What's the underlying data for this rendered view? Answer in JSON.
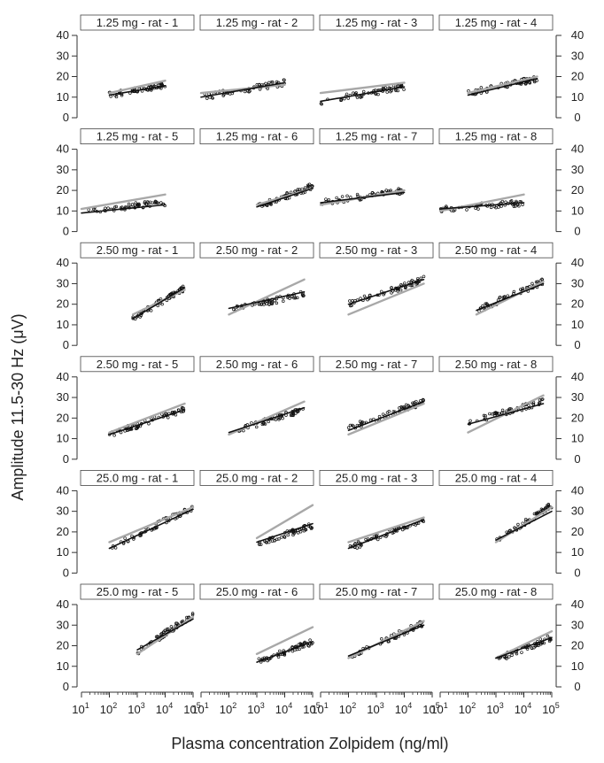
{
  "chart_data": {
    "type": "scatter",
    "xlabel": "Plasma concentration Zolpidem (ng/ml)",
    "ylabel": "Amplitude 11.5-30 Hz (μV)",
    "x_scale": "log",
    "xlim": [
      10,
      100000
    ],
    "ylim": [
      0,
      40
    ],
    "y_ticks": [
      "0",
      "10",
      "20",
      "30",
      "40"
    ],
    "x_tick_bases": [
      "10",
      "10",
      "10",
      "10",
      "10"
    ],
    "x_tick_exponents": [
      "1",
      "2",
      "3",
      "4",
      "5"
    ],
    "colors": {
      "observed": "#111111",
      "fit_black": "#111111",
      "fit_gray": "#a8a8a8"
    },
    "panels": [
      {
        "label": "1.25 mg - rat - 1",
        "obs_x": [
          100,
          10000
        ],
        "obs_y": [
          11,
          16
        ],
        "black_y": [
          11,
          15.5
        ],
        "gray_y": [
          12,
          18
        ]
      },
      {
        "label": "1.25 mg - rat - 2",
        "obs_x": [
          10,
          10000
        ],
        "obs_y": [
          10,
          17
        ],
        "black_y": [
          10,
          17
        ],
        "gray_y": [
          12,
          16
        ]
      },
      {
        "label": "1.25 mg - rat - 3",
        "obs_x": [
          10,
          10000
        ],
        "obs_y": [
          8,
          15
        ],
        "black_y": [
          8,
          15
        ],
        "gray_y": [
          12,
          17
        ]
      },
      {
        "label": "1.25 mg - rat - 4",
        "obs_x": [
          100,
          30000
        ],
        "obs_y": [
          12,
          19
        ],
        "black_y": [
          11,
          19
        ],
        "gray_y": [
          12,
          20
        ]
      },
      {
        "label": "1.25 mg - rat - 5",
        "obs_x": [
          10,
          10000
        ],
        "obs_y": [
          10,
          14
        ],
        "black_y": [
          9,
          13
        ],
        "gray_y": [
          11,
          18
        ]
      },
      {
        "label": "1.25 mg - rat - 6",
        "obs_x": [
          1000,
          100000
        ],
        "obs_y": [
          12,
          22
        ],
        "black_y": [
          12,
          21
        ],
        "gray_y": [
          13,
          21
        ]
      },
      {
        "label": "1.25 mg - rat - 7",
        "obs_x": [
          10,
          10000
        ],
        "obs_y": [
          14,
          20
        ],
        "black_y": [
          14,
          19
        ],
        "gray_y": [
          13,
          20
        ]
      },
      {
        "label": "1.25 mg - rat - 8",
        "obs_x": [
          10,
          10000
        ],
        "obs_y": [
          11,
          14
        ],
        "black_y": [
          11,
          14
        ],
        "gray_y": [
          10,
          18
        ]
      },
      {
        "label": "2.50 mg - rat - 1",
        "obs_x": [
          700,
          50000
        ],
        "obs_y": [
          13,
          28
        ],
        "black_y": [
          13,
          28
        ],
        "gray_y": [
          15,
          27
        ]
      },
      {
        "label": "2.50 mg - rat - 2",
        "obs_x": [
          100,
          50000
        ],
        "obs_y": [
          17,
          25
        ],
        "black_y": [
          18,
          26
        ],
        "gray_y": [
          15,
          32
        ]
      },
      {
        "label": "2.50 mg - rat - 3",
        "obs_x": [
          100,
          50000
        ],
        "obs_y": [
          20,
          32
        ],
        "black_y": [
          20,
          32
        ],
        "gray_y": [
          15,
          30
        ]
      },
      {
        "label": "2.50 mg - rat - 4",
        "obs_x": [
          200,
          50000
        ],
        "obs_y": [
          17,
          31
        ],
        "black_y": [
          17,
          30
        ],
        "gray_y": [
          15,
          31
        ]
      },
      {
        "label": "2.50 mg - rat - 5",
        "obs_x": [
          100,
          50000
        ],
        "obs_y": [
          12,
          24
        ],
        "black_y": [
          12,
          24
        ],
        "gray_y": [
          13,
          27
        ]
      },
      {
        "label": "2.50 mg - rat - 6",
        "obs_x": [
          100,
          50000
        ],
        "obs_y": [
          13,
          24
        ],
        "black_y": [
          13,
          25
        ],
        "gray_y": [
          12,
          28
        ]
      },
      {
        "label": "2.50 mg - rat - 7",
        "obs_x": [
          100,
          50000
        ],
        "obs_y": [
          15,
          28
        ],
        "black_y": [
          14,
          28
        ],
        "gray_y": [
          12,
          27
        ]
      },
      {
        "label": "2.50 mg - rat - 8",
        "obs_x": [
          100,
          50000
        ],
        "obs_y": [
          18,
          28
        ],
        "black_y": [
          17,
          27
        ],
        "gray_y": [
          13,
          31
        ]
      },
      {
        "label": "25.0 mg - rat - 1",
        "obs_x": [
          100,
          100000
        ],
        "obs_y": [
          12,
          32
        ],
        "black_y": [
          12,
          31
        ],
        "gray_y": [
          15,
          32
        ]
      },
      {
        "label": "25.0 mg - rat - 2",
        "obs_x": [
          1000,
          100000
        ],
        "obs_y": [
          14,
          23
        ],
        "black_y": [
          15,
          24
        ],
        "gray_y": [
          17,
          33
        ]
      },
      {
        "label": "25.0 mg - rat - 3",
        "obs_x": [
          100,
          50000
        ],
        "obs_y": [
          12,
          26
        ],
        "black_y": [
          12,
          26
        ],
        "gray_y": [
          15,
          27
        ]
      },
      {
        "label": "25.0 mg - rat - 4",
        "obs_x": [
          1000,
          100000
        ],
        "obs_y": [
          15,
          33
        ],
        "black_y": [
          16,
          30
        ],
        "gray_y": [
          15,
          32
        ]
      },
      {
        "label": "25.0 mg - rat - 5",
        "obs_x": [
          1000,
          100000
        ],
        "obs_y": [
          17,
          35
        ],
        "black_y": [
          18,
          33
        ],
        "gray_y": [
          16,
          34
        ]
      },
      {
        "label": "25.0 mg - rat - 6",
        "obs_x": [
          1000,
          100000
        ],
        "obs_y": [
          12,
          22
        ],
        "black_y": [
          12,
          22
        ],
        "gray_y": [
          16,
          29
        ]
      },
      {
        "label": "25.0 mg - rat - 7",
        "obs_x": [
          100,
          50000
        ],
        "obs_y": [
          15,
          31
        ],
        "black_y": [
          15,
          30
        ],
        "gray_y": [
          14,
          32
        ]
      },
      {
        "label": "25.0 mg - rat - 8",
        "obs_x": [
          1000,
          100000
        ],
        "obs_y": [
          13,
          24
        ],
        "black_y": [
          14,
          24
        ],
        "gray_y": [
          14,
          27
        ]
      }
    ]
  }
}
